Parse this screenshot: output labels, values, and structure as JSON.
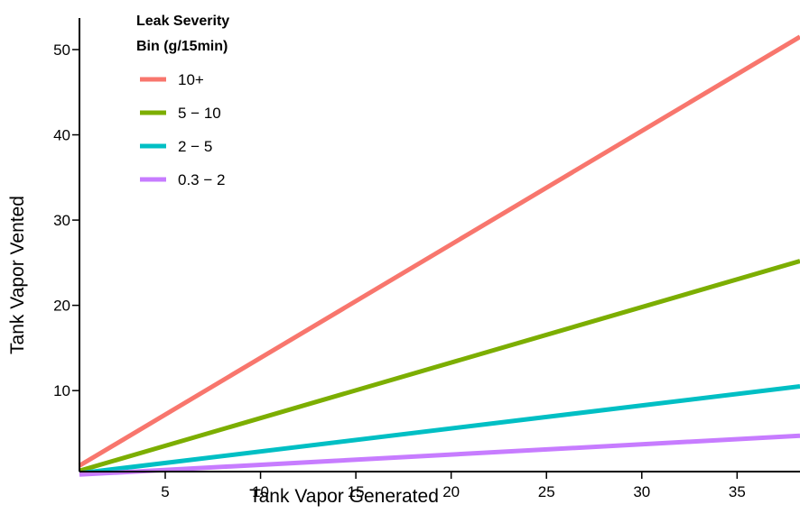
{
  "chart_data": {
    "type": "line",
    "xlabel": "Tank Vapor Generated",
    "ylabel": "Tank Vapor Vented",
    "xlim": [
      0.5,
      38.3
    ],
    "ylim": [
      0.5,
      53.7
    ],
    "x_ticks": [
      5,
      10,
      15,
      20,
      25,
      30,
      35
    ],
    "y_ticks": [
      10,
      20,
      30,
      40,
      50
    ],
    "grid": false,
    "legend": {
      "title_line1": "Leak Severity",
      "title_line2": "Bin (g/15min)",
      "placement": "top-left"
    },
    "series": [
      {
        "name": "10+",
        "color": "#F8766D",
        "x": [
          0.5,
          38.3
        ],
        "y": [
          1.2,
          51.5
        ]
      },
      {
        "name": "5 − 10",
        "color": "#7CAE00",
        "x": [
          0.5,
          38.3
        ],
        "y": [
          0.6,
          25.2
        ]
      },
      {
        "name": "2 − 5",
        "color": "#00BFC4",
        "x": [
          0.5,
          38.3
        ],
        "y": [
          0.3,
          10.5
        ]
      },
      {
        "name": "0.3 − 2",
        "color": "#C77CFF",
        "x": [
          0.5,
          38.3
        ],
        "y": [
          0.15,
          4.7
        ]
      }
    ]
  }
}
